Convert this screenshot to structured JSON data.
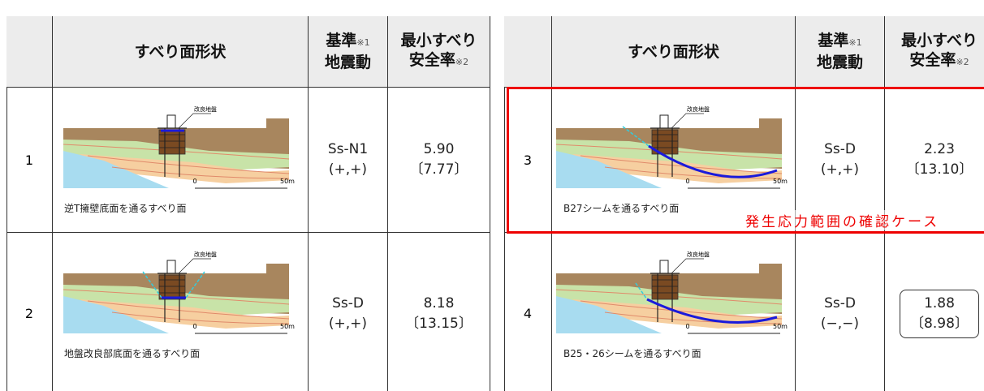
{
  "header": {
    "shape": "すべり面形状",
    "standard": "基準",
    "standard_note": "※1",
    "standard_2": "地震動",
    "sf": "最小すべり",
    "sf_2": "安全率",
    "sf_note": "※2"
  },
  "diagram": {
    "label": "改良地盤",
    "scale_start": "0",
    "scale_end": "50m"
  },
  "tables": [
    {
      "rows": [
        {
          "no": "1",
          "caption": "逆T擁壁底面を通るすべり面",
          "motion": "Ss-N1",
          "sign": "(+,+)",
          "sf": "5.90",
          "sf_bracket": "〔7.77〕"
        },
        {
          "no": "2",
          "caption": "地盤改良部底面を通るすべり面",
          "motion": "Ss-D",
          "sign": "(+,+)",
          "sf": "8.18",
          "sf_bracket": "〔13.15〕"
        }
      ]
    },
    {
      "rows": [
        {
          "no": "3",
          "caption": "B27シームを通るすべり面",
          "motion": "Ss-D",
          "sign": "(+,+)",
          "sf": "2.23",
          "sf_bracket": "〔13.10〕"
        },
        {
          "no": "4",
          "caption": "B25・26シームを通るすべり面",
          "motion": "Ss-D",
          "sign": "(−,−)",
          "sf": "1.88",
          "sf_bracket": "〔8.98〕"
        }
      ]
    }
  ],
  "annotation": "発生応力範囲の確認ケース"
}
